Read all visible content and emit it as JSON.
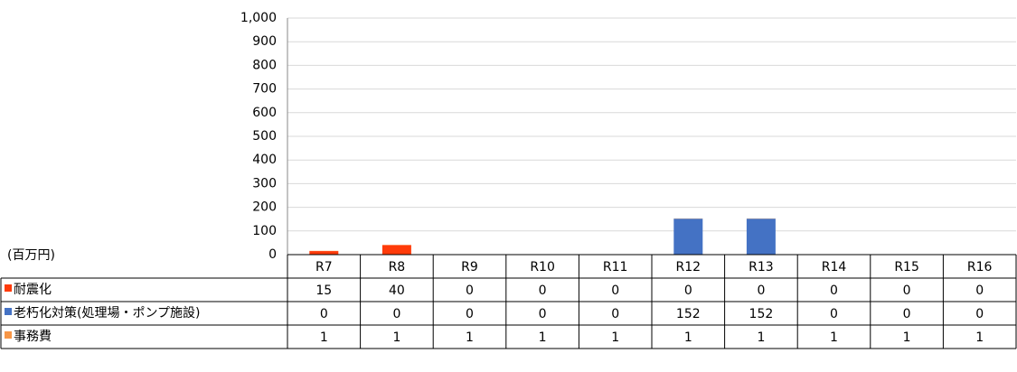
{
  "chart_data": {
    "type": "bar",
    "stacked": true,
    "y_label": "(百万円)",
    "categories": [
      "R7",
      "R8",
      "R9",
      "R10",
      "R11",
      "R12",
      "R13",
      "R14",
      "R15",
      "R16"
    ],
    "series": [
      {
        "name": "耐震化",
        "color": "#ff3b0a",
        "values": [
          15,
          40,
          0,
          0,
          0,
          0,
          0,
          0,
          0,
          0
        ]
      },
      {
        "name": "老朽化対策(処理場・ポンプ施設)",
        "color": "#4472c4",
        "values": [
          0,
          0,
          0,
          0,
          0,
          152,
          152,
          0,
          0,
          0
        ]
      },
      {
        "name": "事務費",
        "color": "#f79646",
        "values": [
          1,
          1,
          1,
          1,
          1,
          1,
          1,
          1,
          1,
          1
        ]
      }
    ],
    "ylim": [
      0,
      1000
    ],
    "yticks": [
      0,
      100,
      200,
      300,
      400,
      500,
      600,
      700,
      800,
      900,
      {
        "value": 1000,
        "label": "1,000"
      }
    ],
    "grid": true,
    "data_table": true
  }
}
